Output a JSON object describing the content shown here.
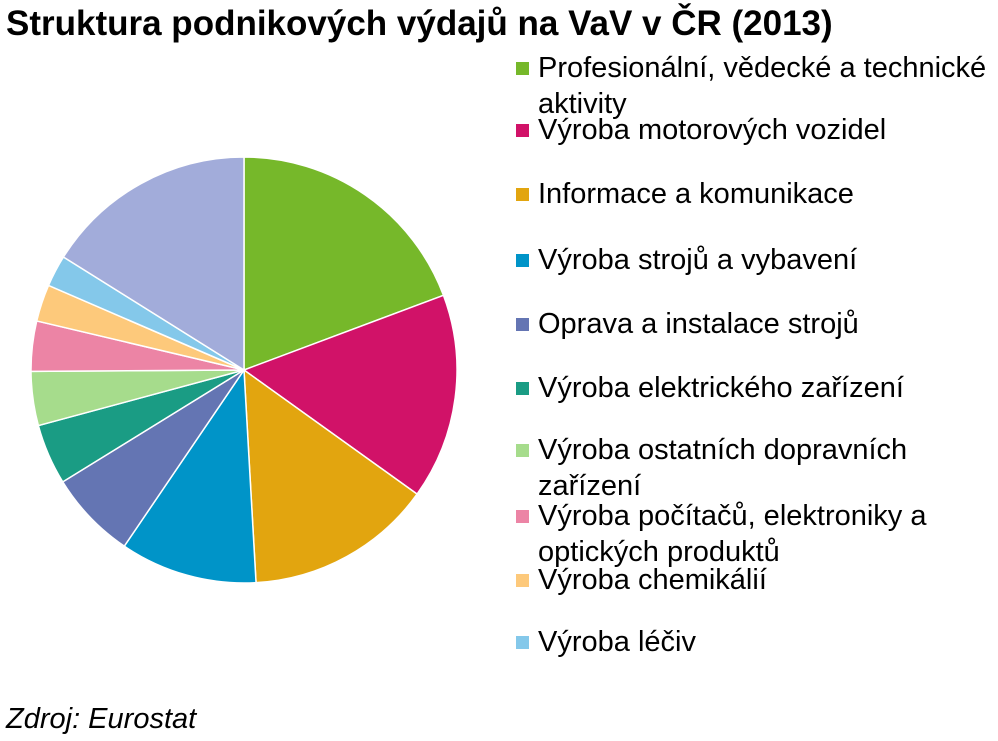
{
  "chart_data": {
    "type": "pie",
    "title": "Struktura podnikových výdajů na VaV v ČR (2013)",
    "source": "Zdroj: Eurostat",
    "legend_position": "right",
    "slices": [
      {
        "label": "Profesionální, vědecké a technické aktivity",
        "value": 19.3,
        "color": "#76b82a"
      },
      {
        "label": "Výroba motorových vozidel",
        "value": 15.6,
        "color": "#d11268"
      },
      {
        "label": "Informace a komunikace",
        "value": 14.2,
        "color": "#e2a50f"
      },
      {
        "label": "Výroba strojů a vybavení",
        "value": 10.4,
        "color": "#0094c8"
      },
      {
        "label": "Oprava a instalace strojů",
        "value": 6.7,
        "color": "#6475b3"
      },
      {
        "label": "Výroba elektrického zařízení",
        "value": 4.6,
        "color": "#1a9c84"
      },
      {
        "label": "Výroba ostatních dopravních zařízení",
        "value": 4.1,
        "color": "#a6dc8c"
      },
      {
        "label": "Výroba počítačů, elektroniky a optických produktů",
        "value": 3.8,
        "color": "#ec84a5"
      },
      {
        "label": "Výroba chemikálií",
        "value": 2.8,
        "color": "#fdc97b"
      },
      {
        "label": "Výroba léčiv",
        "value": 2.4,
        "color": "#84c8ea"
      },
      {
        "label": "",
        "value": 16.1,
        "color": "#a2acda"
      }
    ]
  }
}
